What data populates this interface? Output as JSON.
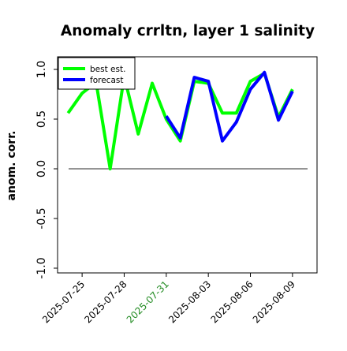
{
  "chart_data": {
    "type": "line",
    "title": "Anomaly crrltn, layer 1 salinity",
    "xlabel": "",
    "ylabel": "anom. corr.",
    "ylim": [
      -1.0,
      1.0
    ],
    "yticks": [
      "-1.0",
      "-0.5",
      "0.0",
      "0.5",
      "1.0"
    ],
    "reference_line_y": 0.0,
    "grid": false,
    "legend_position": "top-left",
    "xticks": [
      {
        "label": "2025-07-25",
        "date": "2025-07-25",
        "color": "#000000"
      },
      {
        "label": "2025-07-28",
        "date": "2025-07-28",
        "color": "#000000"
      },
      {
        "label": "2025-07-31",
        "date": "2025-07-31",
        "color": "#228b22"
      },
      {
        "label": "2025-08-03",
        "date": "2025-08-03",
        "color": "#000000"
      },
      {
        "label": "2025-08-06",
        "date": "2025-08-06",
        "color": "#000000"
      },
      {
        "label": "2025-08-09",
        "date": "2025-08-09",
        "color": "#000000"
      }
    ],
    "xlim": [
      "2025-07-23 06:00",
      "2025-08-10 18:00"
    ],
    "series": [
      {
        "name": "best est.",
        "color": "#00ff00",
        "points": [
          {
            "x": "2025-07-24",
            "y": 0.56
          },
          {
            "x": "2025-07-25",
            "y": 0.76
          },
          {
            "x": "2025-07-26",
            "y": 0.87
          },
          {
            "x": "2025-07-27",
            "y": 0.0
          },
          {
            "x": "2025-07-28",
            "y": 0.93
          },
          {
            "x": "2025-07-29",
            "y": 0.35
          },
          {
            "x": "2025-07-30",
            "y": 0.86
          },
          {
            "x": "2025-07-31",
            "y": 0.5
          },
          {
            "x": "2025-08-01",
            "y": 0.28
          },
          {
            "x": "2025-08-02",
            "y": 0.88
          },
          {
            "x": "2025-08-03",
            "y": 0.86
          },
          {
            "x": "2025-08-04",
            "y": 0.56
          },
          {
            "x": "2025-08-05",
            "y": 0.56
          },
          {
            "x": "2025-08-06",
            "y": 0.88
          },
          {
            "x": "2025-08-07",
            "y": 0.96
          },
          {
            "x": "2025-08-08",
            "y": 0.52
          },
          {
            "x": "2025-08-09",
            "y": 0.8
          }
        ]
      },
      {
        "name": "forecast",
        "color": "#0000ff",
        "points": [
          {
            "x": "2025-07-31",
            "y": 0.53
          },
          {
            "x": "2025-08-01",
            "y": 0.31
          },
          {
            "x": "2025-08-02",
            "y": 0.92
          },
          {
            "x": "2025-08-03",
            "y": 0.88
          },
          {
            "x": "2025-08-04",
            "y": 0.28
          },
          {
            "x": "2025-08-05",
            "y": 0.47
          },
          {
            "x": "2025-08-06",
            "y": 0.8
          },
          {
            "x": "2025-08-07",
            "y": 0.97
          },
          {
            "x": "2025-08-08",
            "y": 0.49
          },
          {
            "x": "2025-08-09",
            "y": 0.78
          }
        ]
      }
    ]
  }
}
